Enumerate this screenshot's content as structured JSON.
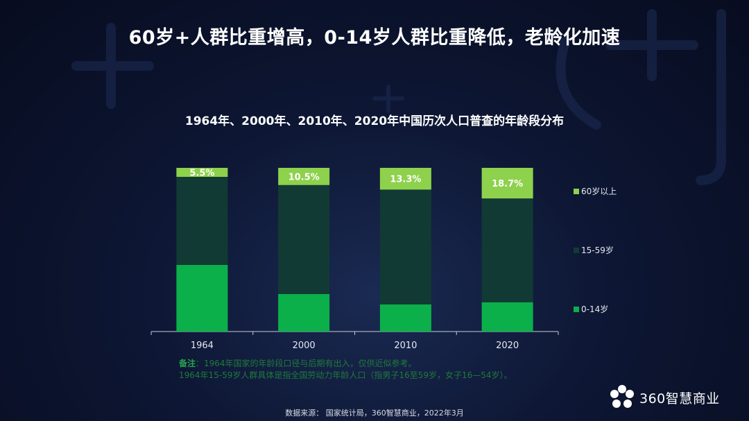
{
  "title": "60岁+人群比重增高，0-14岁人群比重降低，老龄化加速",
  "chart_data": {
    "type": "bar",
    "stacked": true,
    "title": "1964年、2000年、2010年、2020年中国历次人口普查的年龄段分布",
    "categories": [
      "1964",
      "2000",
      "2010",
      "2020"
    ],
    "series": [
      {
        "name": "0-14岁",
        "values": [
          40.7,
          22.9,
          16.6,
          17.9
        ],
        "color": "#0bb04b"
      },
      {
        "name": "15-59岁",
        "values": [
          53.8,
          66.6,
          70.1,
          63.4
        ],
        "color": "#123a34"
      },
      {
        "name": "60岁以上",
        "values": [
          5.5,
          10.5,
          13.3,
          18.7
        ],
        "color": "#8ed14c"
      }
    ],
    "data_labels": [
      "5.5%",
      "10.5%",
      "13.3%",
      "18.7%"
    ],
    "ylim": [
      0,
      100
    ],
    "grid": false,
    "legend": "right"
  },
  "note": {
    "label": "备注",
    "line1": "：1964年国家的年龄段口径与后期有出入，仅供近似参考。",
    "line2": "1964年15-59岁人群具体是指全国劳动力年龄人口（指男子16至59岁，女子16—54岁）。"
  },
  "source": "数据来源： 国家统计局，360智慧商业，2022年3月",
  "brand": {
    "name": "360智慧商业",
    "icon": "flower-logo-icon"
  }
}
